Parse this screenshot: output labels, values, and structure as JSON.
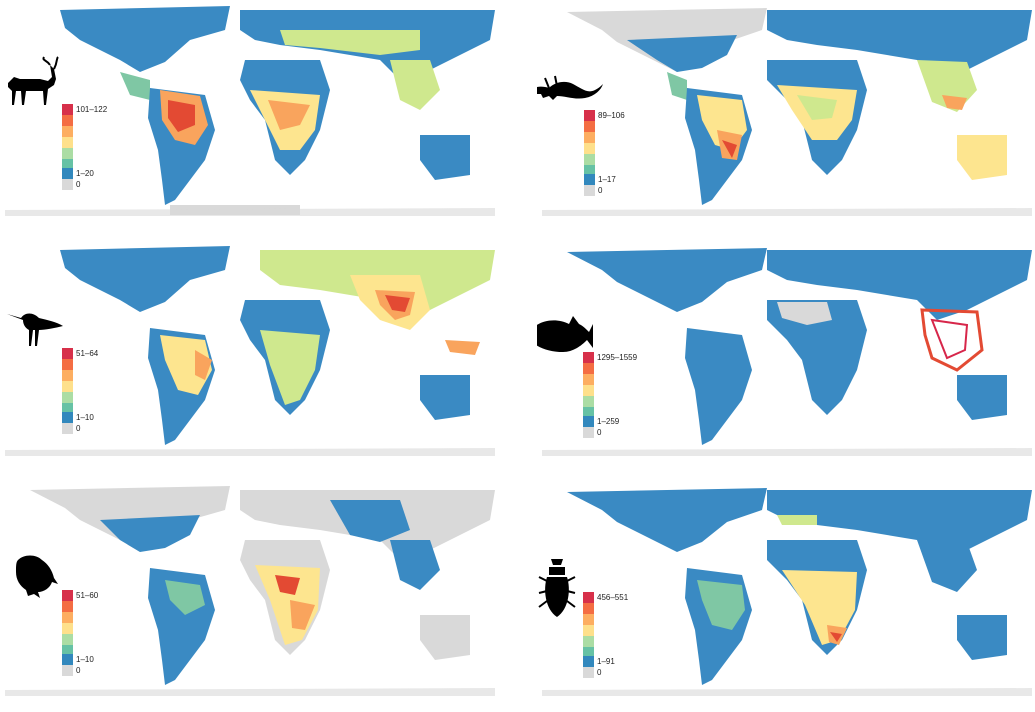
{
  "palette": {
    "ocean": "#ffffff",
    "land_none": "#d9d9d9",
    "low": "#3a8ac3",
    "low_mid": "#7fc7a4",
    "mid": "#cfe88e",
    "mid_high": "#fde58f",
    "high_mid": "#f9a45d",
    "high": "#e34a33",
    "top": "#d7264a",
    "outline": "#3a3a3a"
  },
  "legend_colors": [
    "#d7304a",
    "#f46d43",
    "#fdae61",
    "#fee08b",
    "#abdda4",
    "#66c2a5",
    "#3288bd",
    "#d9d9d9"
  ],
  "panels": [
    {
      "id": "mammals",
      "icon": "antelope-icon",
      "legend": {
        "max_label": "101–122",
        "min_label": "1–20",
        "zero_label": "0"
      },
      "hotspots": [
        "amazon",
        "central-africa"
      ],
      "base_land": "low"
    },
    {
      "id": "reptiles",
      "icon": "lizard-icon",
      "legend": {
        "max_label": "89–106",
        "min_label": "1–17",
        "zero_label": "0"
      },
      "hotspots": [
        "brazil-southeast",
        "southeast-asia"
      ],
      "base_land": "low"
    },
    {
      "id": "birds",
      "icon": "shorebird-icon",
      "legend": {
        "max_label": "51–64",
        "min_label": "1–10",
        "zero_label": "0"
      },
      "hotspots": [
        "himalaya",
        "new-guinea"
      ],
      "base_land": "low"
    },
    {
      "id": "fish",
      "icon": "fish-icon",
      "legend": {
        "max_label": "1295–1559",
        "min_label": "1–259",
        "zero_label": "0"
      },
      "hotspots": [
        "coral-triangle"
      ],
      "base_land": "low"
    },
    {
      "id": "amphibians",
      "icon": "frog-icon",
      "legend": {
        "max_label": "51–60",
        "min_label": "1–10",
        "zero_label": "0"
      },
      "hotspots": [
        "central-africa",
        "southern-africa"
      ],
      "base_land": "low"
    },
    {
      "id": "beetles",
      "icon": "beetle-icon",
      "legend": {
        "max_label": "456–551",
        "min_label": "1–91",
        "zero_label": "0"
      },
      "hotspots": [
        "southern-africa"
      ],
      "base_land": "low"
    }
  ]
}
